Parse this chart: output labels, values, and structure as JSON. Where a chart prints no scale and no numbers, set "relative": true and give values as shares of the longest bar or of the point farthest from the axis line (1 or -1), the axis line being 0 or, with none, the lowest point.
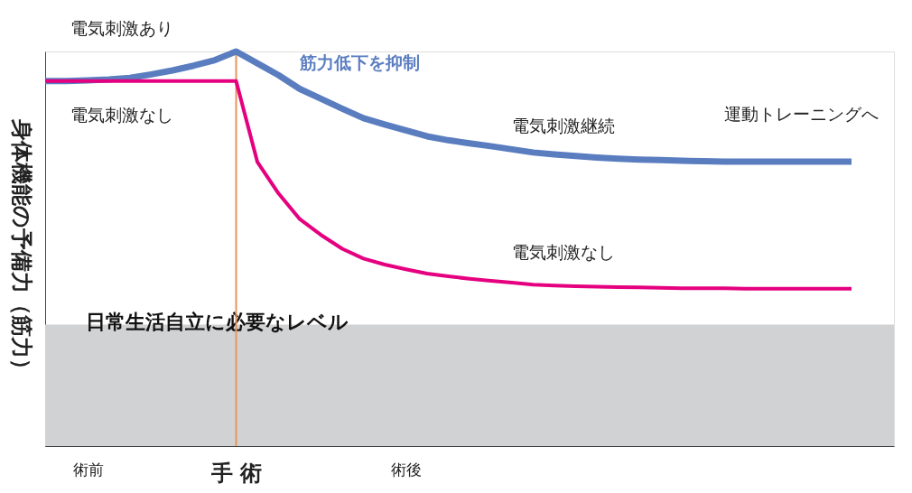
{
  "chart_data": {
    "type": "line",
    "relative": true,
    "ylabel": "身体機能の予備力（筋力）",
    "categories": [
      null,
      null,
      "術前",
      null,
      null,
      null,
      null,
      null,
      null,
      "手 術",
      null,
      null,
      null,
      null,
      null,
      null,
      null,
      "術後",
      null,
      null,
      null,
      null,
      null,
      null,
      null,
      null,
      null,
      null,
      null,
      null,
      null,
      null,
      null,
      null,
      null,
      null,
      null,
      null,
      null,
      null,
      null
    ],
    "series": [
      {
        "name": "電気刺激あり",
        "color": "#5a7dc0",
        "values": [
          0.925,
          0.925,
          0.927,
          0.929,
          0.933,
          0.942,
          0.952,
          0.964,
          0.978,
          1,
          0.97,
          0.94,
          0.905,
          0.88,
          0.855,
          0.831,
          0.815,
          0.8,
          0.785,
          0.775,
          0.767,
          0.76,
          0.752,
          0.744,
          0.739,
          0.735,
          0.731,
          0.728,
          0.726,
          0.725,
          0.723,
          0.722,
          0.721,
          0.721,
          0.721,
          0.721,
          0.721,
          0.721,
          0.721,
          null,
          null
        ]
      },
      {
        "name": "電気刺激なし",
        "color": "#e5007f",
        "values": [
          0.925,
          0.925,
          0.925,
          0.925,
          0.925,
          0.925,
          0.925,
          0.925,
          0.925,
          0.925,
          0.72,
          0.64,
          0.575,
          0.535,
          0.5,
          0.475,
          0.46,
          0.448,
          0.437,
          0.43,
          0.424,
          0.419,
          0.414,
          0.409,
          0.407,
          0.405,
          0.404,
          0.403,
          0.402,
          0.401,
          0.4,
          0.4,
          0.4,
          0.399,
          0.399,
          0.399,
          0.399,
          0.399,
          0.399,
          null,
          null
        ]
      }
    ],
    "bands": [
      {
        "axis": "y",
        "from": 0,
        "to": 0.308,
        "label": "日常生活自立に必要なレベル",
        "color": "#d1d2d4"
      }
    ],
    "ref_lines": [
      {
        "axis": "x",
        "value": "手 術",
        "color": "#e8955a"
      }
    ],
    "annotations": [
      "筋力低下を抑制",
      "電気刺激継続",
      "運動トレーニングへ",
      "電気刺激なし"
    ],
    "grid": false,
    "marker": "none",
    "line_style": "solid"
  }
}
